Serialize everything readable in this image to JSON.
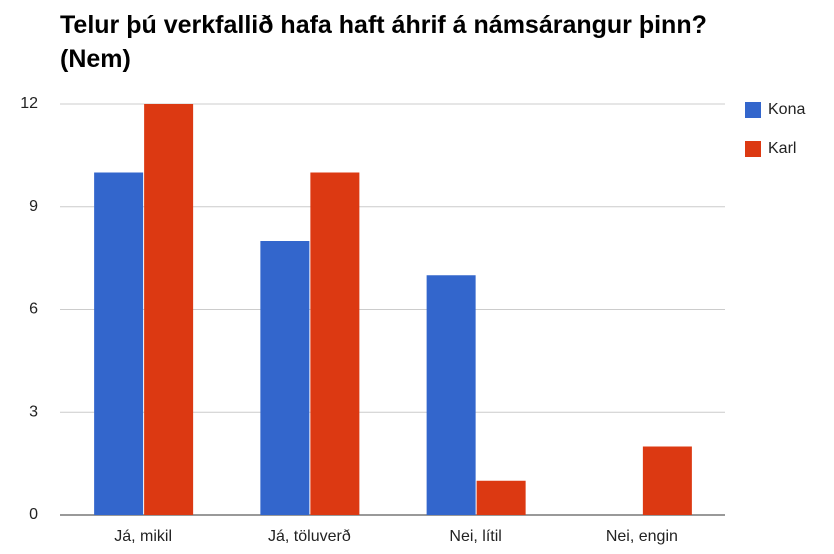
{
  "chart_data": {
    "type": "bar",
    "title": "Telur þú verkfallið hafa haft áhrif á námsárangur þinn? (Nem)",
    "categories": [
      "Já, mikil",
      "Já, töluverð",
      "Nei, lítil",
      "Nei, engin"
    ],
    "series": [
      {
        "name": "Kona",
        "color": "#3366cc",
        "values": [
          10,
          8,
          7,
          0
        ]
      },
      {
        "name": "Karl",
        "color": "#dc3912",
        "values": [
          12,
          10,
          1,
          2
        ]
      }
    ],
    "ylim": [
      0,
      12
    ],
    "yticks": [
      0,
      3,
      6,
      9,
      12
    ],
    "grid": true,
    "legend": "right"
  }
}
